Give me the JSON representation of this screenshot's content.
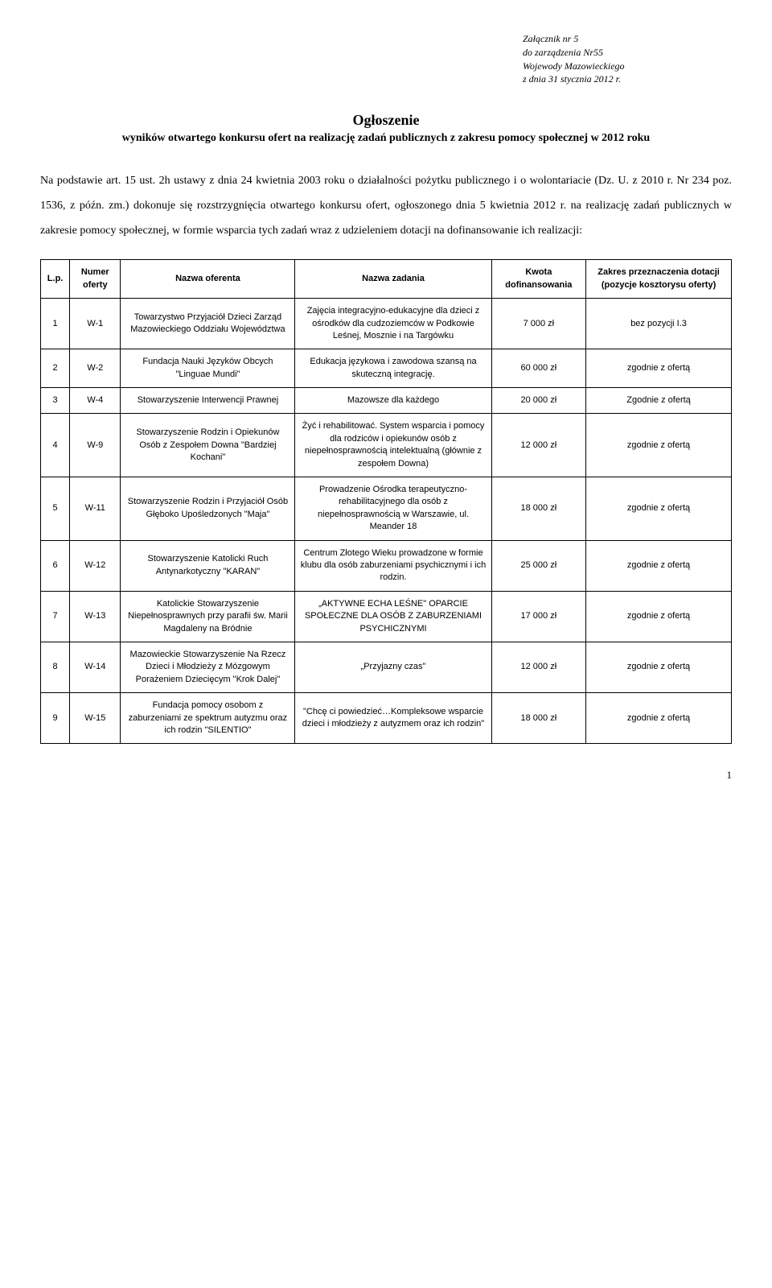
{
  "header": {
    "line1": "Załącznik nr 5",
    "line2": "do zarządzenia Nr55",
    "line3": "Wojewody Mazowieckiego",
    "line4": "z dnia 31 stycznia 2012 r."
  },
  "title": "Ogłoszenie",
  "subtitle": "wyników otwartego konkursu ofert na realizację zadań publicznych z zakresu pomocy społecznej w 2012 roku",
  "body": "Na podstawie art. 15 ust. 2h ustawy z dnia 24 kwietnia 2003 roku o działalności pożytku publicznego i o wolontariacie (Dz. U. z 2010 r. Nr 234 poz. 1536, z późn. zm.) dokonuje się rozstrzygnięcia otwartego konkursu ofert, ogłoszonego dnia 5 kwietnia 2012 r. na realizację zadań publicznych w zakresie pomocy społecznej, w formie wsparcia tych zadań wraz z udzieleniem dotacji na dofinansowanie ich realizacji:",
  "table": {
    "columns": [
      "L.p.",
      "Numer oferty",
      "Nazwa oferenta",
      "Nazwa zadania",
      "Kwota dofinansowania",
      "Zakres przeznaczenia dotacji (pozycje kosztorysu oferty)"
    ],
    "rows": [
      {
        "lp": "1",
        "num": "W-1",
        "oferent": "Towarzystwo Przyjaciół Dzieci Zarząd Mazowieckiego Oddziału Województwa",
        "zadanie": "Zajęcia integracyjno-edukacyjne dla dzieci z ośrodków dla cudzoziemców w Podkowie Leśnej, Mosznie i na Targówku",
        "kwota": "7 000 zł",
        "zakres": "bez pozycji I.3"
      },
      {
        "lp": "2",
        "num": "W-2",
        "oferent": "Fundacja Nauki Języków Obcych \"Linguae Mundi\"",
        "zadanie": "Edukacja językowa i zawodowa szansą na skuteczną integrację.",
        "kwota": "60 000 zł",
        "zakres": "zgodnie z ofertą"
      },
      {
        "lp": "3",
        "num": "W-4",
        "oferent": "Stowarzyszenie Interwencji Prawnej",
        "zadanie": "Mazowsze dla każdego",
        "kwota": "20 000 zł",
        "zakres": "Zgodnie z ofertą"
      },
      {
        "lp": "4",
        "num": "W-9",
        "oferent": "Stowarzyszenie Rodzin i Opiekunów Osób z Zespołem Downa \"Bardziej Kochani\"",
        "zadanie": "Żyć i rehabilitować. System wsparcia i pomocy dla rodziców i opiekunów osób z niepełnosprawnością intelektualną (głównie z zespołem Downa)",
        "kwota": "12 000 zł",
        "zakres": "zgodnie z ofertą"
      },
      {
        "lp": "5",
        "num": "W-11",
        "oferent": "Stowarzyszenie Rodzin i Przyjaciół Osób Głęboko Upośledzonych \"Maja\"",
        "zadanie": "Prowadzenie Ośrodka terapeutyczno-rehabilitacyjnego dla osób z niepełnosprawnością w Warszawie, ul. Meander 18",
        "kwota": "18 000 zł",
        "zakres": "zgodnie z ofertą"
      },
      {
        "lp": "6",
        "num": "W-12",
        "oferent": "Stowarzyszenie Katolicki Ruch Antynarkotyczny \"KARAN\"",
        "zadanie": "Centrum Złotego Wieku prowadzone w formie klubu dla osób zaburzeniami psychicznymi i ich rodzin.",
        "kwota": "25 000 zł",
        "zakres": "zgodnie z ofertą"
      },
      {
        "lp": "7",
        "num": "W-13",
        "oferent": "Katolickie Stowarzyszenie Niepełnosprawnych przy parafii św. Marii Magdaleny na Bródnie",
        "zadanie": "„AKTYWNE ECHA LEŚNE\" OPARCIE SPOŁECZNE DLA OSÓB Z ZABURZENIAMI PSYCHICZNYMI",
        "kwota": "17 000 zł",
        "zakres": "zgodnie z ofertą"
      },
      {
        "lp": "8",
        "num": "W-14",
        "oferent": "Mazowieckie Stowarzyszenie Na Rzecz Dzieci i Młodzieży z Mózgowym Porażeniem Dziecięcym \"Krok Dalej\"",
        "zadanie": "„Przyjazny czas\"",
        "kwota": "12 000 zł",
        "zakres": "zgodnie z ofertą"
      },
      {
        "lp": "9",
        "num": "W-15",
        "oferent": "Fundacja pomocy osobom z zaburzeniami ze spektrum autyzmu oraz ich rodzin \"SILENTIO\"",
        "zadanie": "\"Chcę ci powiedzieć…Kompleksowe wsparcie dzieci i młodzieży z autyzmem oraz ich rodzin\"",
        "kwota": "18 000 zł",
        "zakres": "zgodnie z ofertą"
      }
    ]
  },
  "pageNumber": "1"
}
